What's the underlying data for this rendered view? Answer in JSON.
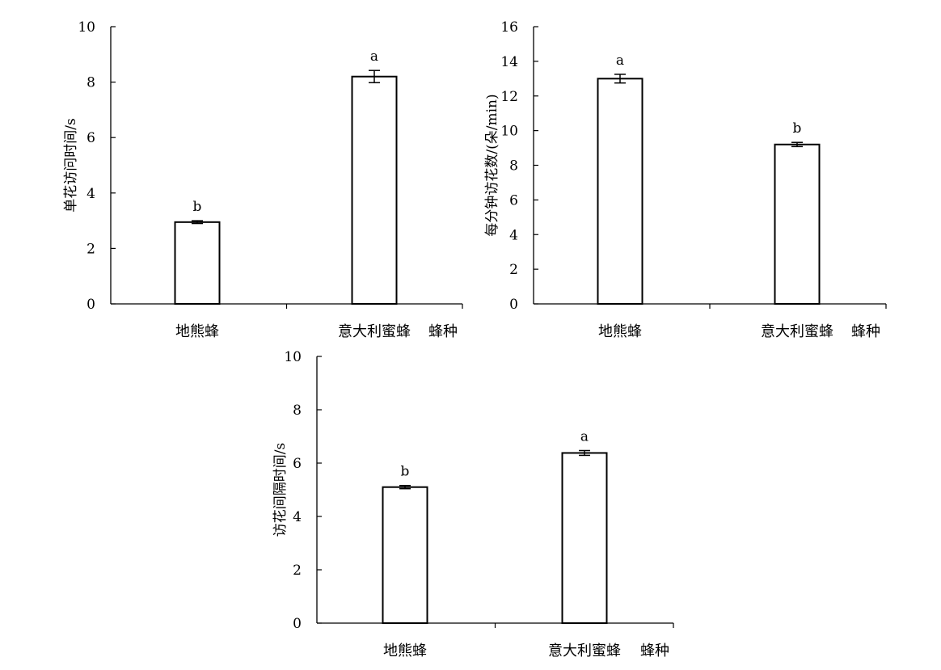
{
  "chart_data": [
    {
      "type": "bar",
      "categories": [
        "地熊蜂",
        "意大利蜜蜂"
      ],
      "values": [
        2.95,
        8.2
      ],
      "errors": [
        0.05,
        0.22
      ],
      "letters": [
        "b",
        "a"
      ],
      "ylabel": "单花访问时间/s",
      "xlabel": "蜂种",
      "ylim": [
        0,
        10
      ],
      "yticks": [
        0,
        2,
        4,
        6,
        8,
        10
      ],
      "grid": false
    },
    {
      "type": "bar",
      "categories": [
        "地熊蜂",
        "意大利蜜蜂"
      ],
      "values": [
        13.0,
        9.2
      ],
      "errors": [
        0.25,
        0.12
      ],
      "letters": [
        "a",
        "b"
      ],
      "ylabel": "每分钟访花数/(朵/min)",
      "xlabel": "蜂种",
      "ylim": [
        0,
        16
      ],
      "yticks": [
        0,
        2,
        4,
        6,
        8,
        10,
        12,
        14,
        16
      ],
      "grid": false
    },
    {
      "type": "bar",
      "categories": [
        "地熊蜂",
        "意大利蜜蜂"
      ],
      "values": [
        5.1,
        6.38
      ],
      "errors": [
        0.06,
        0.09
      ],
      "letters": [
        "b",
        "a"
      ],
      "ylabel": "访花间隔时间/s",
      "xlabel": "蜂种",
      "ylim": [
        0,
        10
      ],
      "yticks": [
        0,
        2,
        4,
        6,
        8,
        10
      ],
      "grid": false
    }
  ]
}
